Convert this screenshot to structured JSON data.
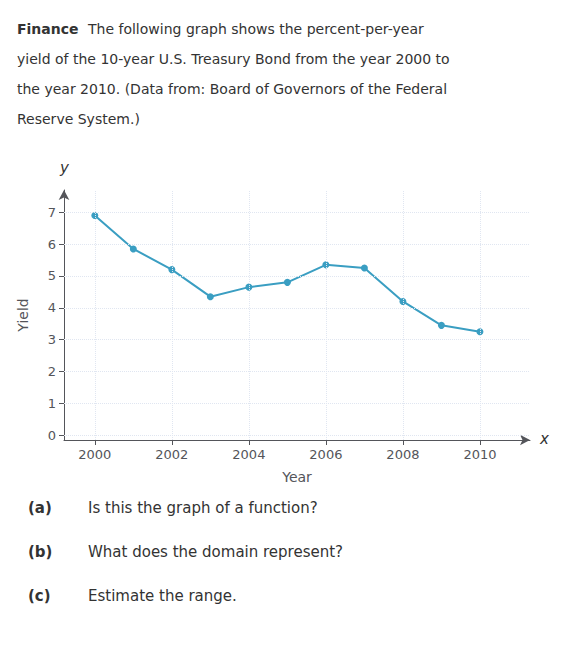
{
  "chart_data": {
    "type": "line",
    "title": "Finance",
    "subtitle": [
      "The following graph shows the percent-per-year",
      "yield of the 10-year U.S. Treasury Bond from the year 2000 to",
      "the year 2010. (Data from: Board of Governors of the Federal",
      "Reserve System.)"
    ],
    "x_label": "Year",
    "y_label": "Yield",
    "x": [
      2000,
      2001,
      2002,
      2003,
      2004,
      2005,
      2006,
      2007,
      2008,
      2009,
      2010
    ],
    "values": [
      6.9,
      5.85,
      5.2,
      4.35,
      4.65,
      4.8,
      5.35,
      5.25,
      4.2,
      3.45,
      3.25
    ],
    "color": "#3a9ec2",
    "marker": "circle",
    "xlim": [
      1999.2,
      2011.3
    ],
    "ylim": [
      -0.15,
      7.7
    ],
    "xticks": [
      2000,
      2002,
      2004,
      2006,
      2008,
      2010
    ],
    "yticks": [
      0,
      1,
      2,
      3,
      4,
      5,
      6,
      7
    ],
    "grid": true,
    "annotations": {
      "axis_ends": [
        "x",
        "y"
      ],
      "questions": [
        {
          "label": "(a)",
          "text": "Is this the graph of a function?"
        },
        {
          "label": "(b)",
          "text": "What does the domain represent?"
        },
        {
          "label": "(c)",
          "text": "Estimate the range."
        }
      ]
    }
  }
}
